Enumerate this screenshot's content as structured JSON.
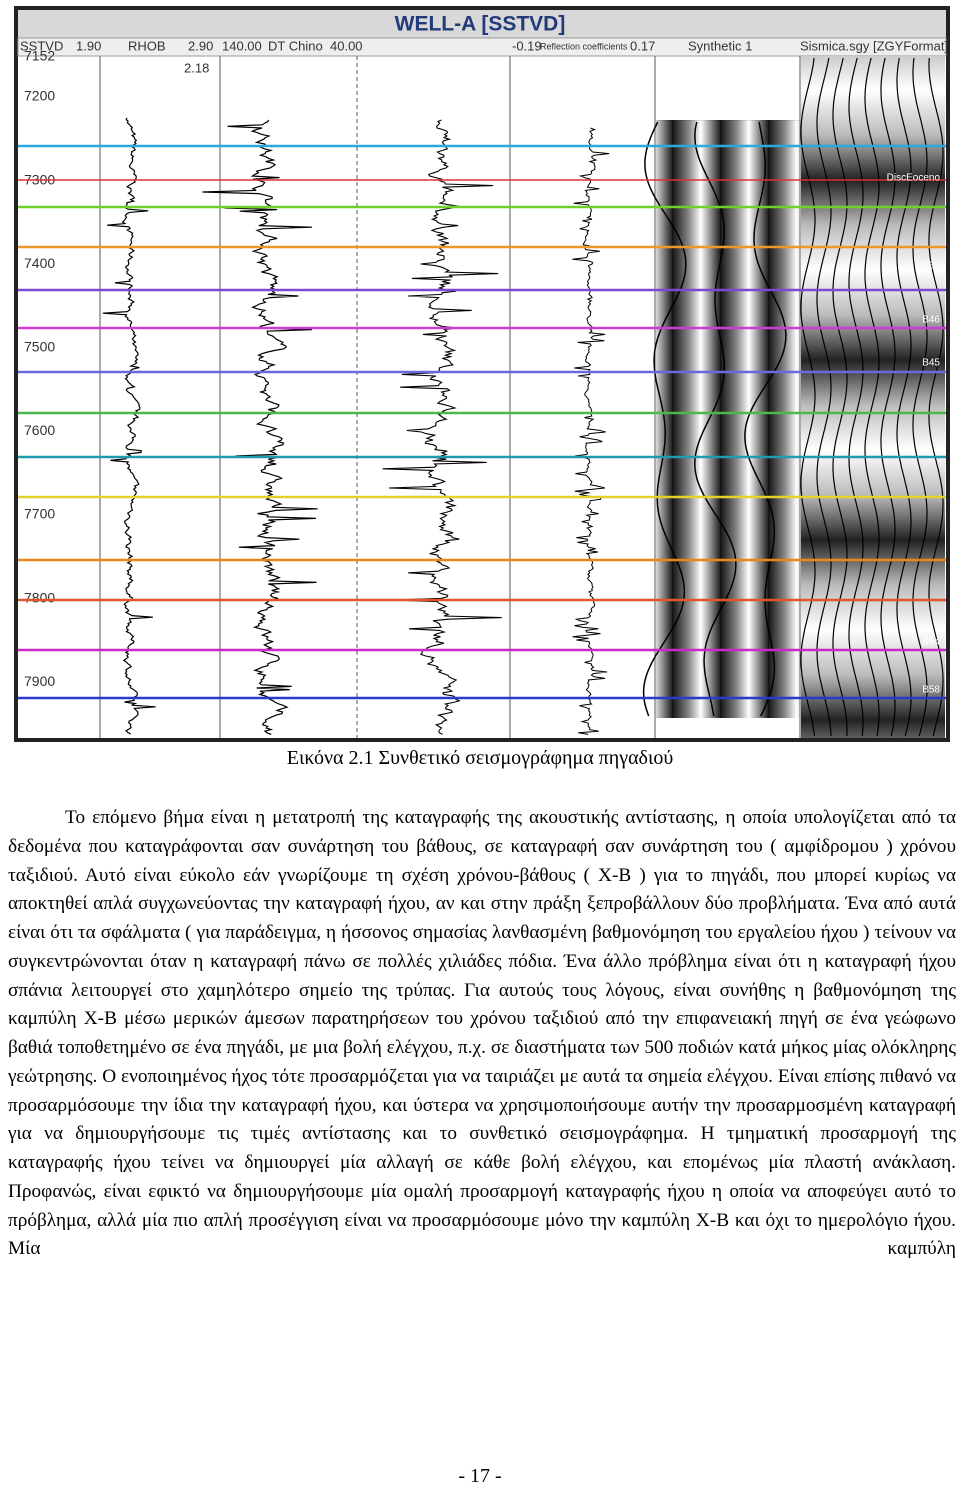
{
  "figure": {
    "title": "WELL-A [SSTVD]",
    "header": [
      "SSTVD",
      "1.90",
      "RHOB",
      "2.90",
      "140.00",
      "DT Chino",
      "40.00",
      "-0.19",
      "Reflection coefficients",
      "0.17",
      "Synthetic 1",
      "Sismica.sgy [ZGYFormat]"
    ],
    "rhob_marker": "2.18",
    "depths": [
      "7152",
      "7200",
      "7300",
      "7400",
      "7500",
      "7600",
      "7700",
      "7800",
      "7900"
    ],
    "horizons": [
      "DiscEoceno",
      "B31",
      "B46",
      "B45",
      "B54",
      "B58"
    ]
  },
  "caption": "Εικόνα 2.1 Συνθετικό σεισμογράφημα πηγαδιού",
  "body": "Το επόμενο βήμα είναι η μετατροπή της καταγραφής της ακουστικής αντίστασης, η οποία υπολογίζεται από τα δεδομένα που καταγράφονται σαν συνάρτηση του βάθους, σε καταγραφή σαν συνάρτηση του ( αμφίδρομου ) χρόνου ταξιδιού. Αυτό είναι εύκολο εάν γνωρίζουμε τη σχέση χρόνου-βάθους ( Χ-Β ) για το πηγάδι, που μπορεί κυρίως να αποκτηθεί απλά συγχωνεύοντας την καταγραφή ήχου, αν και στην πράξη ξεπροβάλλουν δύο προβλήματα. Ένα από αυτά είναι ότι τα σφάλματα ( για παράδειγμα, η ήσσονος σημασίας λανθασμένη βαθμονόμηση του εργαλείου ήχου ) τείνουν να συγκεντρώνονται όταν η καταγραφή πάνω σε πολλές χιλιάδες πόδια. Ένα άλλο πρόβλημα είναι ότι η καταγραφή ήχου σπάνια λειτουργεί στο χαμηλότερο σημείο της τρύπας. Για αυτούς τους λόγους, είναι συνήθης η βαθμονόμηση της καμπύλη Χ-Β μέσω μερικών άμεσων παρατηρήσεων του χρόνου ταξιδιού από την επιφανειακή πηγή σε ένα γεώφωνο βαθιά τοποθετημένο σε ένα πηγάδι, με μια βολή ελέγχου, π.χ. σε διαστήματα των 500 ποδιών κατά μήκος μίας ολόκληρης γεώτρησης. Ο ενοποιημένος ήχος τότε προσαρμόζεται για να ταιριάζει με αυτά τα σημεία ελέγχου. Είναι επίσης πιθανό να προσαρμόσουμε την ίδια την καταγραφή ήχου, και ύστερα να χρησιμοποιήσουμε αυτήν την προσαρμοσμένη καταγραφή για να δημιουργήσουμε τις τιμές αντίστασης και το συνθετικό σεισμογράφημα. Η τμηματική προσαρμογή της καταγραφής ήχου τείνει να δημιουργεί μία αλλαγή σε κάθε βολή ελέγχου, και επομένως μία πλαστή ανάκλαση. Προφανώς, είναι εφικτό να δημιουργήσουμε μία ομαλή προσαρμογή καταγραφής ήχου η οποία να αποφεύγει αυτό το πρόβλημα, αλλά μία πιο απλή προσέγγιση είναι να προσαρμόσουμε μόνο την καμπύλη Χ-Β και όχι το ημερολόγιο ήχου. Μία καμπύλη",
  "page_number": "- 17 -"
}
